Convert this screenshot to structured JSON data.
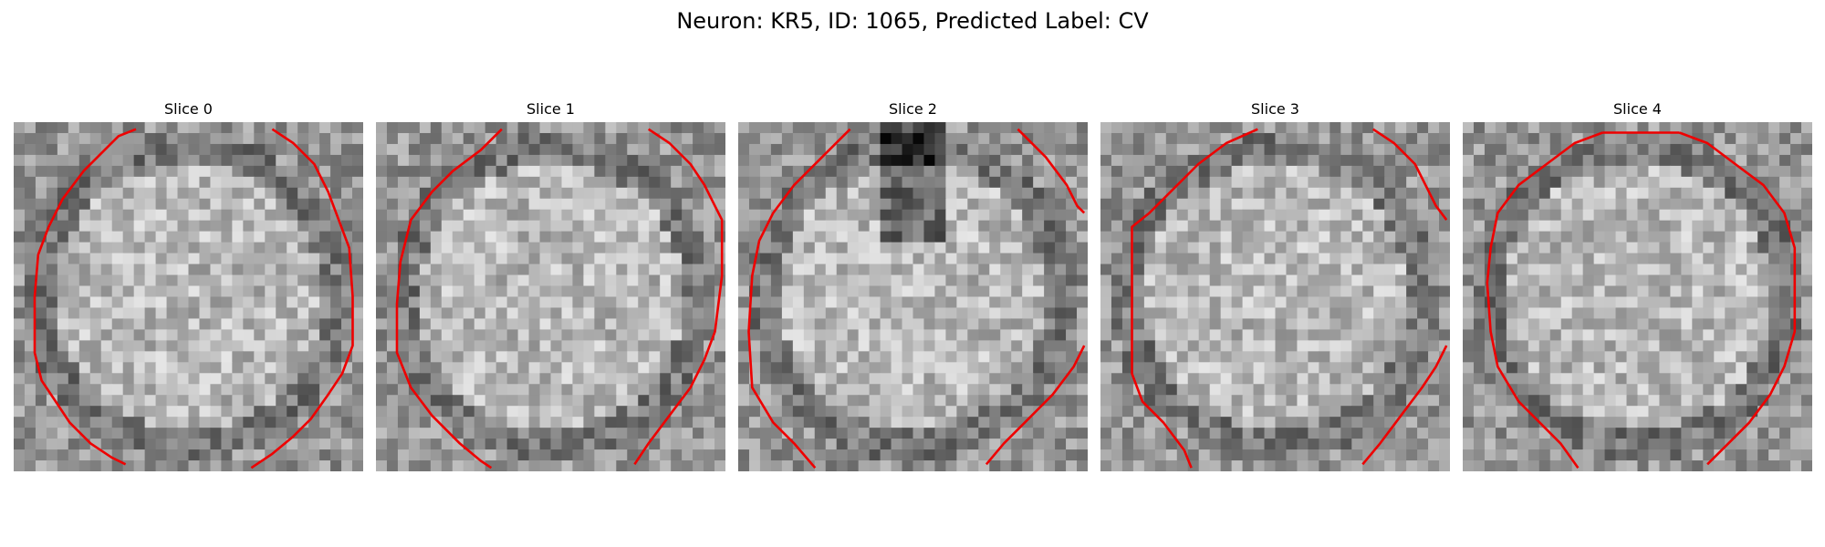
{
  "figure": {
    "title": "Neuron: KR5, ID: 1065, Predicted Label: CV",
    "outline_color": "#ee0000"
  },
  "panels": [
    {
      "title": "Slice 0",
      "outline": {
        "left": [
          [
            0.35,
            0.02
          ],
          [
            0.3,
            0.04
          ],
          [
            0.26,
            0.08
          ],
          [
            0.2,
            0.14
          ],
          [
            0.14,
            0.22
          ],
          [
            0.1,
            0.3
          ],
          [
            0.07,
            0.38
          ],
          [
            0.06,
            0.5
          ],
          [
            0.06,
            0.66
          ],
          [
            0.08,
            0.74
          ],
          [
            0.12,
            0.8
          ],
          [
            0.16,
            0.86
          ],
          [
            0.22,
            0.92
          ],
          [
            0.28,
            0.96
          ],
          [
            0.32,
            0.98
          ]
        ],
        "right": [
          [
            0.74,
            0.02
          ],
          [
            0.8,
            0.06
          ],
          [
            0.86,
            0.12
          ],
          [
            0.9,
            0.2
          ],
          [
            0.93,
            0.28
          ],
          [
            0.96,
            0.36
          ],
          [
            0.97,
            0.5
          ],
          [
            0.97,
            0.64
          ],
          [
            0.94,
            0.72
          ],
          [
            0.9,
            0.78
          ],
          [
            0.85,
            0.85
          ],
          [
            0.8,
            0.9
          ],
          [
            0.74,
            0.95
          ],
          [
            0.68,
            0.99
          ]
        ]
      }
    },
    {
      "title": "Slice 1",
      "outline": {
        "left": [
          [
            0.36,
            0.02
          ],
          [
            0.3,
            0.08
          ],
          [
            0.22,
            0.14
          ],
          [
            0.16,
            0.2
          ],
          [
            0.1,
            0.28
          ],
          [
            0.07,
            0.4
          ],
          [
            0.06,
            0.52
          ],
          [
            0.06,
            0.66
          ],
          [
            0.1,
            0.76
          ],
          [
            0.16,
            0.84
          ],
          [
            0.24,
            0.92
          ],
          [
            0.3,
            0.97
          ],
          [
            0.33,
            0.99
          ]
        ],
        "right": [
          [
            0.78,
            0.02
          ],
          [
            0.84,
            0.06
          ],
          [
            0.9,
            0.12
          ],
          [
            0.94,
            0.18
          ],
          [
            0.97,
            0.24
          ],
          [
            0.99,
            0.28
          ],
          [
            0.99,
            0.44
          ],
          [
            0.97,
            0.6
          ],
          [
            0.94,
            0.68
          ],
          [
            0.9,
            0.76
          ],
          [
            0.84,
            0.84
          ],
          [
            0.78,
            0.92
          ],
          [
            0.74,
            0.98
          ]
        ]
      }
    },
    {
      "title": "Slice 2",
      "outline": {
        "left": [
          [
            0.32,
            0.02
          ],
          [
            0.24,
            0.1
          ],
          [
            0.16,
            0.18
          ],
          [
            0.1,
            0.26
          ],
          [
            0.06,
            0.34
          ],
          [
            0.04,
            0.44
          ],
          [
            0.03,
            0.6
          ],
          [
            0.04,
            0.76
          ],
          [
            0.1,
            0.86
          ],
          [
            0.16,
            0.92
          ],
          [
            0.22,
            0.99
          ]
        ],
        "right": [
          [
            0.8,
            0.02
          ],
          [
            0.88,
            0.1
          ],
          [
            0.94,
            0.18
          ],
          [
            0.97,
            0.24
          ],
          [
            0.99,
            0.26
          ]
        ],
        "right_lower": [
          [
            0.99,
            0.64
          ],
          [
            0.96,
            0.7
          ],
          [
            0.9,
            0.78
          ],
          [
            0.82,
            0.86
          ],
          [
            0.76,
            0.92
          ],
          [
            0.71,
            0.98
          ]
        ]
      }
    },
    {
      "title": "Slice 3",
      "outline": {
        "left": [
          [
            0.45,
            0.02
          ],
          [
            0.36,
            0.06
          ],
          [
            0.28,
            0.12
          ],
          [
            0.2,
            0.2
          ],
          [
            0.14,
            0.26
          ],
          [
            0.09,
            0.3
          ],
          [
            0.09,
            0.72
          ],
          [
            0.12,
            0.8
          ],
          [
            0.18,
            0.86
          ],
          [
            0.24,
            0.94
          ],
          [
            0.26,
            0.99
          ]
        ],
        "right": [
          [
            0.78,
            0.02
          ],
          [
            0.84,
            0.06
          ],
          [
            0.9,
            0.12
          ],
          [
            0.93,
            0.18
          ],
          [
            0.96,
            0.24
          ],
          [
            0.99,
            0.28
          ]
        ],
        "right_lower": [
          [
            0.99,
            0.64
          ],
          [
            0.96,
            0.7
          ],
          [
            0.92,
            0.76
          ],
          [
            0.86,
            0.84
          ],
          [
            0.8,
            0.92
          ],
          [
            0.75,
            0.98
          ]
        ]
      }
    },
    {
      "title": "Slice 4",
      "outline": {
        "left": [
          [
            0.4,
            0.03
          ],
          [
            0.32,
            0.06
          ],
          [
            0.24,
            0.12
          ],
          [
            0.16,
            0.18
          ],
          [
            0.1,
            0.26
          ],
          [
            0.08,
            0.36
          ],
          [
            0.07,
            0.46
          ],
          [
            0.08,
            0.6
          ],
          [
            0.1,
            0.7
          ],
          [
            0.16,
            0.8
          ],
          [
            0.22,
            0.86
          ],
          [
            0.28,
            0.92
          ],
          [
            0.33,
            0.99
          ]
        ],
        "top": [
          [
            0.4,
            0.03
          ],
          [
            0.62,
            0.03
          ]
        ],
        "right": [
          [
            0.62,
            0.03
          ],
          [
            0.7,
            0.06
          ],
          [
            0.78,
            0.12
          ],
          [
            0.86,
            0.18
          ],
          [
            0.92,
            0.26
          ],
          [
            0.95,
            0.36
          ],
          [
            0.95,
            0.6
          ],
          [
            0.92,
            0.7
          ],
          [
            0.88,
            0.78
          ],
          [
            0.82,
            0.86
          ],
          [
            0.76,
            0.92
          ],
          [
            0.7,
            0.98
          ]
        ]
      }
    }
  ]
}
